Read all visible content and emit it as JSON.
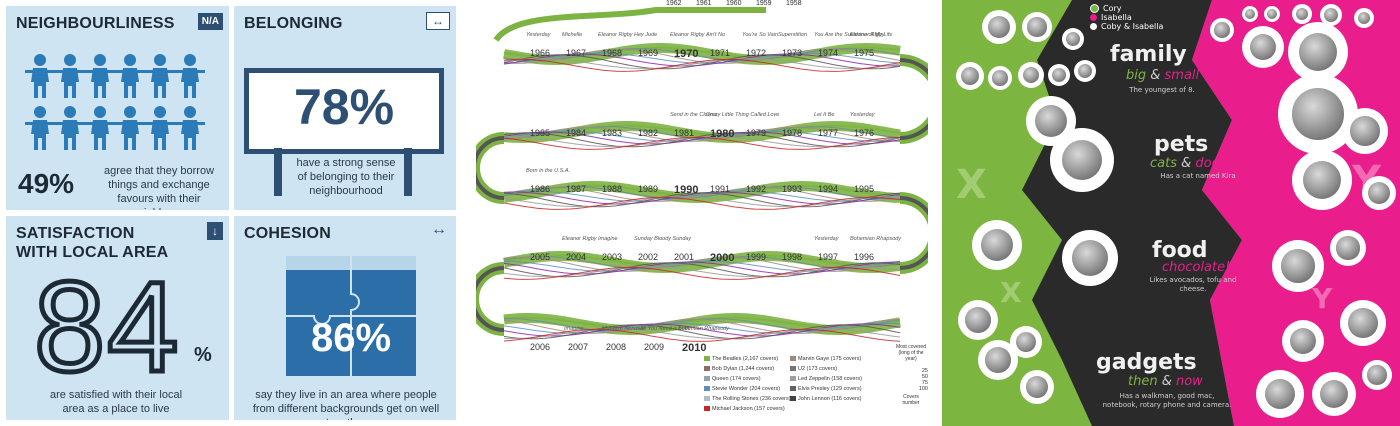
{
  "panel1": {
    "neighbourliness": {
      "title": "NEIGHBOURLINESS",
      "badge": "N/A",
      "value": "49%",
      "caption": "agree that they borrow things and exchange favours with their neighbours"
    },
    "belonging": {
      "title": "BELONGING",
      "arrow": "↔",
      "value": "78%",
      "caption": "have a strong sense of belonging to their neighbourhood"
    },
    "satisfaction": {
      "title_line1": "SATISFACTION",
      "title_line2": "WITH LOCAL AREA",
      "arrow": "↓",
      "value_digits": "84",
      "value_unit": "%",
      "caption": "are satisfied with their local area as a place to live"
    },
    "cohesion": {
      "title": "COHESION",
      "arrow": "↔",
      "value": "86%",
      "caption": "say they live in an area where people from different backgrounds get on well together"
    }
  },
  "panel2": {
    "top_years": [
      "1962",
      "1961",
      "1960",
      "1959",
      "1958"
    ],
    "row1": [
      {
        "year": "1966",
        "song": "Yesterday"
      },
      {
        "year": "1967",
        "song": "Michelle"
      },
      {
        "year": "1968",
        "song": "Eleanor Rigby"
      },
      {
        "year": "1969",
        "song": "Hey Jude"
      },
      {
        "year": "1970",
        "song": "Eleanor Rigby"
      },
      {
        "year": "1971",
        "song": "Ain't No"
      },
      {
        "year": "1972",
        "song": "You're So Vain"
      },
      {
        "year": "1973",
        "song": "Superstition"
      },
      {
        "year": "1974",
        "song": "You Are the Sunshine of My Life"
      },
      {
        "year": "1975",
        "song": "Eleanor Rigby"
      }
    ],
    "row2": [
      {
        "year": "1985",
        "song": ""
      },
      {
        "year": "1984",
        "song": ""
      },
      {
        "year": "1983",
        "song": ""
      },
      {
        "year": "1982",
        "song": ""
      },
      {
        "year": "1981",
        "song": "Send in the Clowns"
      },
      {
        "year": "1980",
        "song": "Crazy Little Thing Called Love"
      },
      {
        "year": "1979",
        "song": ""
      },
      {
        "year": "1978",
        "song": ""
      },
      {
        "year": "1977",
        "song": "Let It Be"
      },
      {
        "year": "1976",
        "song": "Yesterday"
      }
    ],
    "row3": [
      {
        "year": "1986",
        "song": "Born in the U.S.A."
      },
      {
        "year": "1987",
        "song": ""
      },
      {
        "year": "1988",
        "song": ""
      },
      {
        "year": "1989",
        "song": ""
      },
      {
        "year": "1990",
        "song": ""
      },
      {
        "year": "1991",
        "song": ""
      },
      {
        "year": "1992",
        "song": ""
      },
      {
        "year": "1993",
        "song": ""
      },
      {
        "year": "1994",
        "song": ""
      },
      {
        "year": "1995",
        "song": ""
      }
    ],
    "row4": [
      {
        "year": "2005",
        "song": ""
      },
      {
        "year": "2004",
        "song": "Eleanor Rigby"
      },
      {
        "year": "2003",
        "song": "Imagine"
      },
      {
        "year": "2002",
        "song": "Sunday Bloody Sunday"
      },
      {
        "year": "2001",
        "song": ""
      },
      {
        "year": "2000",
        "song": ""
      },
      {
        "year": "1999",
        "song": ""
      },
      {
        "year": "1998",
        "song": ""
      },
      {
        "year": "1997",
        "song": "Yesterday"
      },
      {
        "year": "1996",
        "song": "Bohemian Rhapsody"
      }
    ],
    "row5": [
      {
        "year": "2006",
        "song": ""
      },
      {
        "year": "2007",
        "song": "Imagine"
      },
      {
        "year": "2008",
        "song": "Mannish Nervous"
      },
      {
        "year": "2009",
        "song": "All You Need is Love"
      },
      {
        "year": "2010",
        "song": "Bohemian Rhapsody"
      }
    ],
    "legend": [
      {
        "label": "The Beatles (2,167 covers)",
        "color": "#7cb342"
      },
      {
        "label": "Bob Dylan (1,244 covers)",
        "color": "#8d6e63"
      },
      {
        "label": "Queen (174 covers)",
        "color": "#90a4ae"
      },
      {
        "label": "Stevie Wonder (204 covers)",
        "color": "#5c8fbf"
      },
      {
        "label": "The Rolling Stones (236 covers)",
        "color": "#b0bec5"
      },
      {
        "label": "Michael Jackson (157 covers)",
        "color": "#c62828"
      },
      {
        "label": "Marvin Gaye (175 covers)",
        "color": "#a1887f"
      },
      {
        "label": "U2 (173 covers)",
        "color": "#757575"
      },
      {
        "label": "Led Zeppelin (158 covers)",
        "color": "#9e9e9e"
      },
      {
        "label": "Elvis Presley (129 covers)",
        "color": "#616161"
      },
      {
        "label": "John Lennon (116 covers)",
        "color": "#424242"
      }
    ],
    "scale_title": "Most covered (long of the year)",
    "scale_values": [
      "25",
      "50",
      "75",
      "100"
    ],
    "scale_footer": "Covers number"
  },
  "panel3": {
    "legend": [
      {
        "label": "Cory",
        "color": "#7db541"
      },
      {
        "label": "Isabella",
        "color": "#e91e8c"
      },
      {
        "label": "Coby & Isabella",
        "color": "#ffffff"
      }
    ],
    "categories": [
      {
        "title": "family",
        "sub1": "big",
        "sub_amp": " & ",
        "sub2": "small",
        "desc": "The youngest of 8."
      },
      {
        "title": "pets",
        "sub1": "cats",
        "sub_amp": " & ",
        "sub2": "dogs",
        "desc": "Has a cat named Kira"
      },
      {
        "title": "food",
        "sub1": "",
        "sub_amp": "",
        "sub2": "chocolate!",
        "desc": "Likes avocados, tofu and cheese."
      },
      {
        "title": "gadgets",
        "sub1": "then",
        "sub_amp": " & ",
        "sub2": "now",
        "desc": "Has a walkman, good mac, notebook, rotary phone and camera."
      }
    ],
    "letter_x": "X",
    "letter_y": "Y",
    "colors": {
      "green": "#7db541",
      "pink": "#e91e8c",
      "dark": "#2a2a2a"
    }
  }
}
